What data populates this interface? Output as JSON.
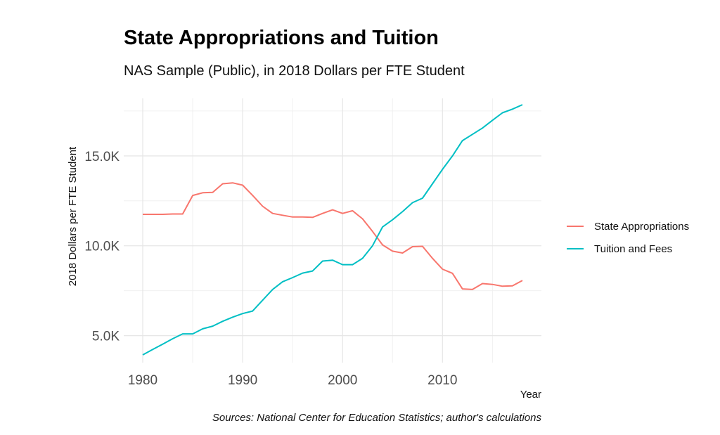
{
  "chart_data": {
    "type": "line",
    "title": "State Appropriations and Tuition",
    "subtitle": "NAS Sample (Public), in 2018 Dollars per FTE Student",
    "xlabel": "Year",
    "ylabel": "2018 Dollars per FTE Student",
    "caption": "Sources: National Center for Education Statistics; author's calculations",
    "xlim": [
      1978.1,
      2019.9
    ],
    "ylim": [
      3.5,
      18.2
    ],
    "x_ticks": [
      1980,
      1990,
      2000,
      2010
    ],
    "x_tick_labels": [
      "1980",
      "1990",
      "2000",
      "2010"
    ],
    "y_ticks": [
      5,
      10,
      15
    ],
    "y_tick_labels": [
      "5.0K",
      "10.0K",
      "15.0K"
    ],
    "y_unit": "thousands of 2018 dollars",
    "grid": true,
    "legend_position": "right",
    "x": [
      1980,
      1981,
      1982,
      1983,
      1984,
      1985,
      1986,
      1987,
      1988,
      1989,
      1990,
      1991,
      1992,
      1993,
      1994,
      1995,
      1996,
      1997,
      1998,
      1999,
      2000,
      2001,
      2002,
      2003,
      2004,
      2005,
      2006,
      2007,
      2008,
      2009,
      2010,
      2011,
      2012,
      2013,
      2014,
      2015,
      2016,
      2017,
      2018
    ],
    "series": [
      {
        "name": "State Appropriations",
        "color": "#F8766D",
        "values": [
          11.75,
          11.75,
          11.75,
          11.77,
          11.77,
          12.8,
          12.95,
          12.97,
          13.45,
          13.5,
          13.37,
          12.8,
          12.2,
          11.8,
          11.7,
          11.6,
          11.6,
          11.58,
          11.8,
          12.0,
          11.8,
          11.95,
          11.5,
          10.8,
          10.05,
          9.7,
          9.6,
          9.95,
          9.97,
          9.3,
          8.7,
          8.47,
          7.6,
          7.57,
          7.9,
          7.85,
          7.75,
          7.77,
          8.07
        ]
      },
      {
        "name": "Tuition and Fees",
        "color": "#00BFC4",
        "values": [
          3.93,
          4.23,
          4.53,
          4.83,
          5.1,
          5.1,
          5.38,
          5.53,
          5.8,
          6.03,
          6.23,
          6.37,
          6.97,
          7.57,
          8.0,
          8.23,
          8.48,
          8.6,
          9.15,
          9.2,
          8.95,
          8.95,
          9.3,
          10.0,
          11.05,
          11.45,
          11.9,
          12.4,
          12.65,
          13.45,
          14.25,
          15.0,
          15.85,
          16.2,
          16.55,
          16.98,
          17.4,
          17.6,
          17.85
        ]
      }
    ]
  }
}
